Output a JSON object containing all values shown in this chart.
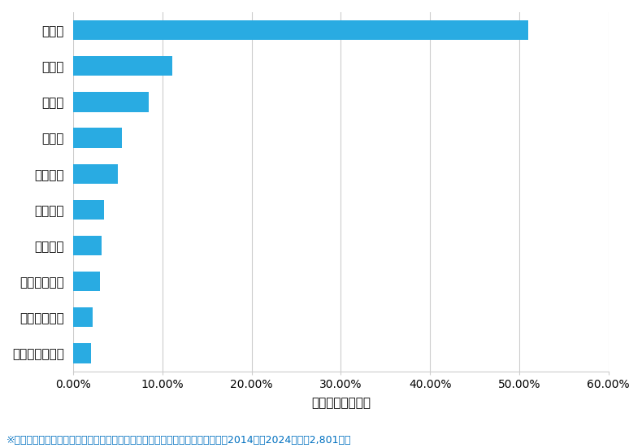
{
  "categories": [
    "高松市",
    "丸亀市",
    "坂出市",
    "三豊市",
    "観音寺市",
    "さぬき市",
    "善通寺市",
    "綾歌郡綾川町",
    "木田郡三木町",
    "綾歌郡宇多津町"
  ],
  "values": [
    51.05,
    11.1,
    8.5,
    5.5,
    5.0,
    3.5,
    3.2,
    3.0,
    2.2,
    2.0
  ],
  "bar_color": "#29ABE2",
  "xlabel": "件数の割合（％）",
  "xlim": [
    0,
    60
  ],
  "xtick_values": [
    0,
    10,
    20,
    30,
    40,
    50,
    60
  ],
  "xtick_labels": [
    "0.00%",
    "10.00%",
    "20.00%",
    "30.00%",
    "40.00%",
    "50.00%",
    "60.00%"
  ],
  "footnote": "※弊社受付の案件を対象に、受付時に市区町村の回答があったものを集計（期間2014年～2024年、計2,801件）",
  "footnote_color": "#0070C0",
  "background_color": "#FFFFFF",
  "grid_color": "#CCCCCC",
  "figsize": [
    7.9,
    5.51
  ],
  "dpi": 100
}
